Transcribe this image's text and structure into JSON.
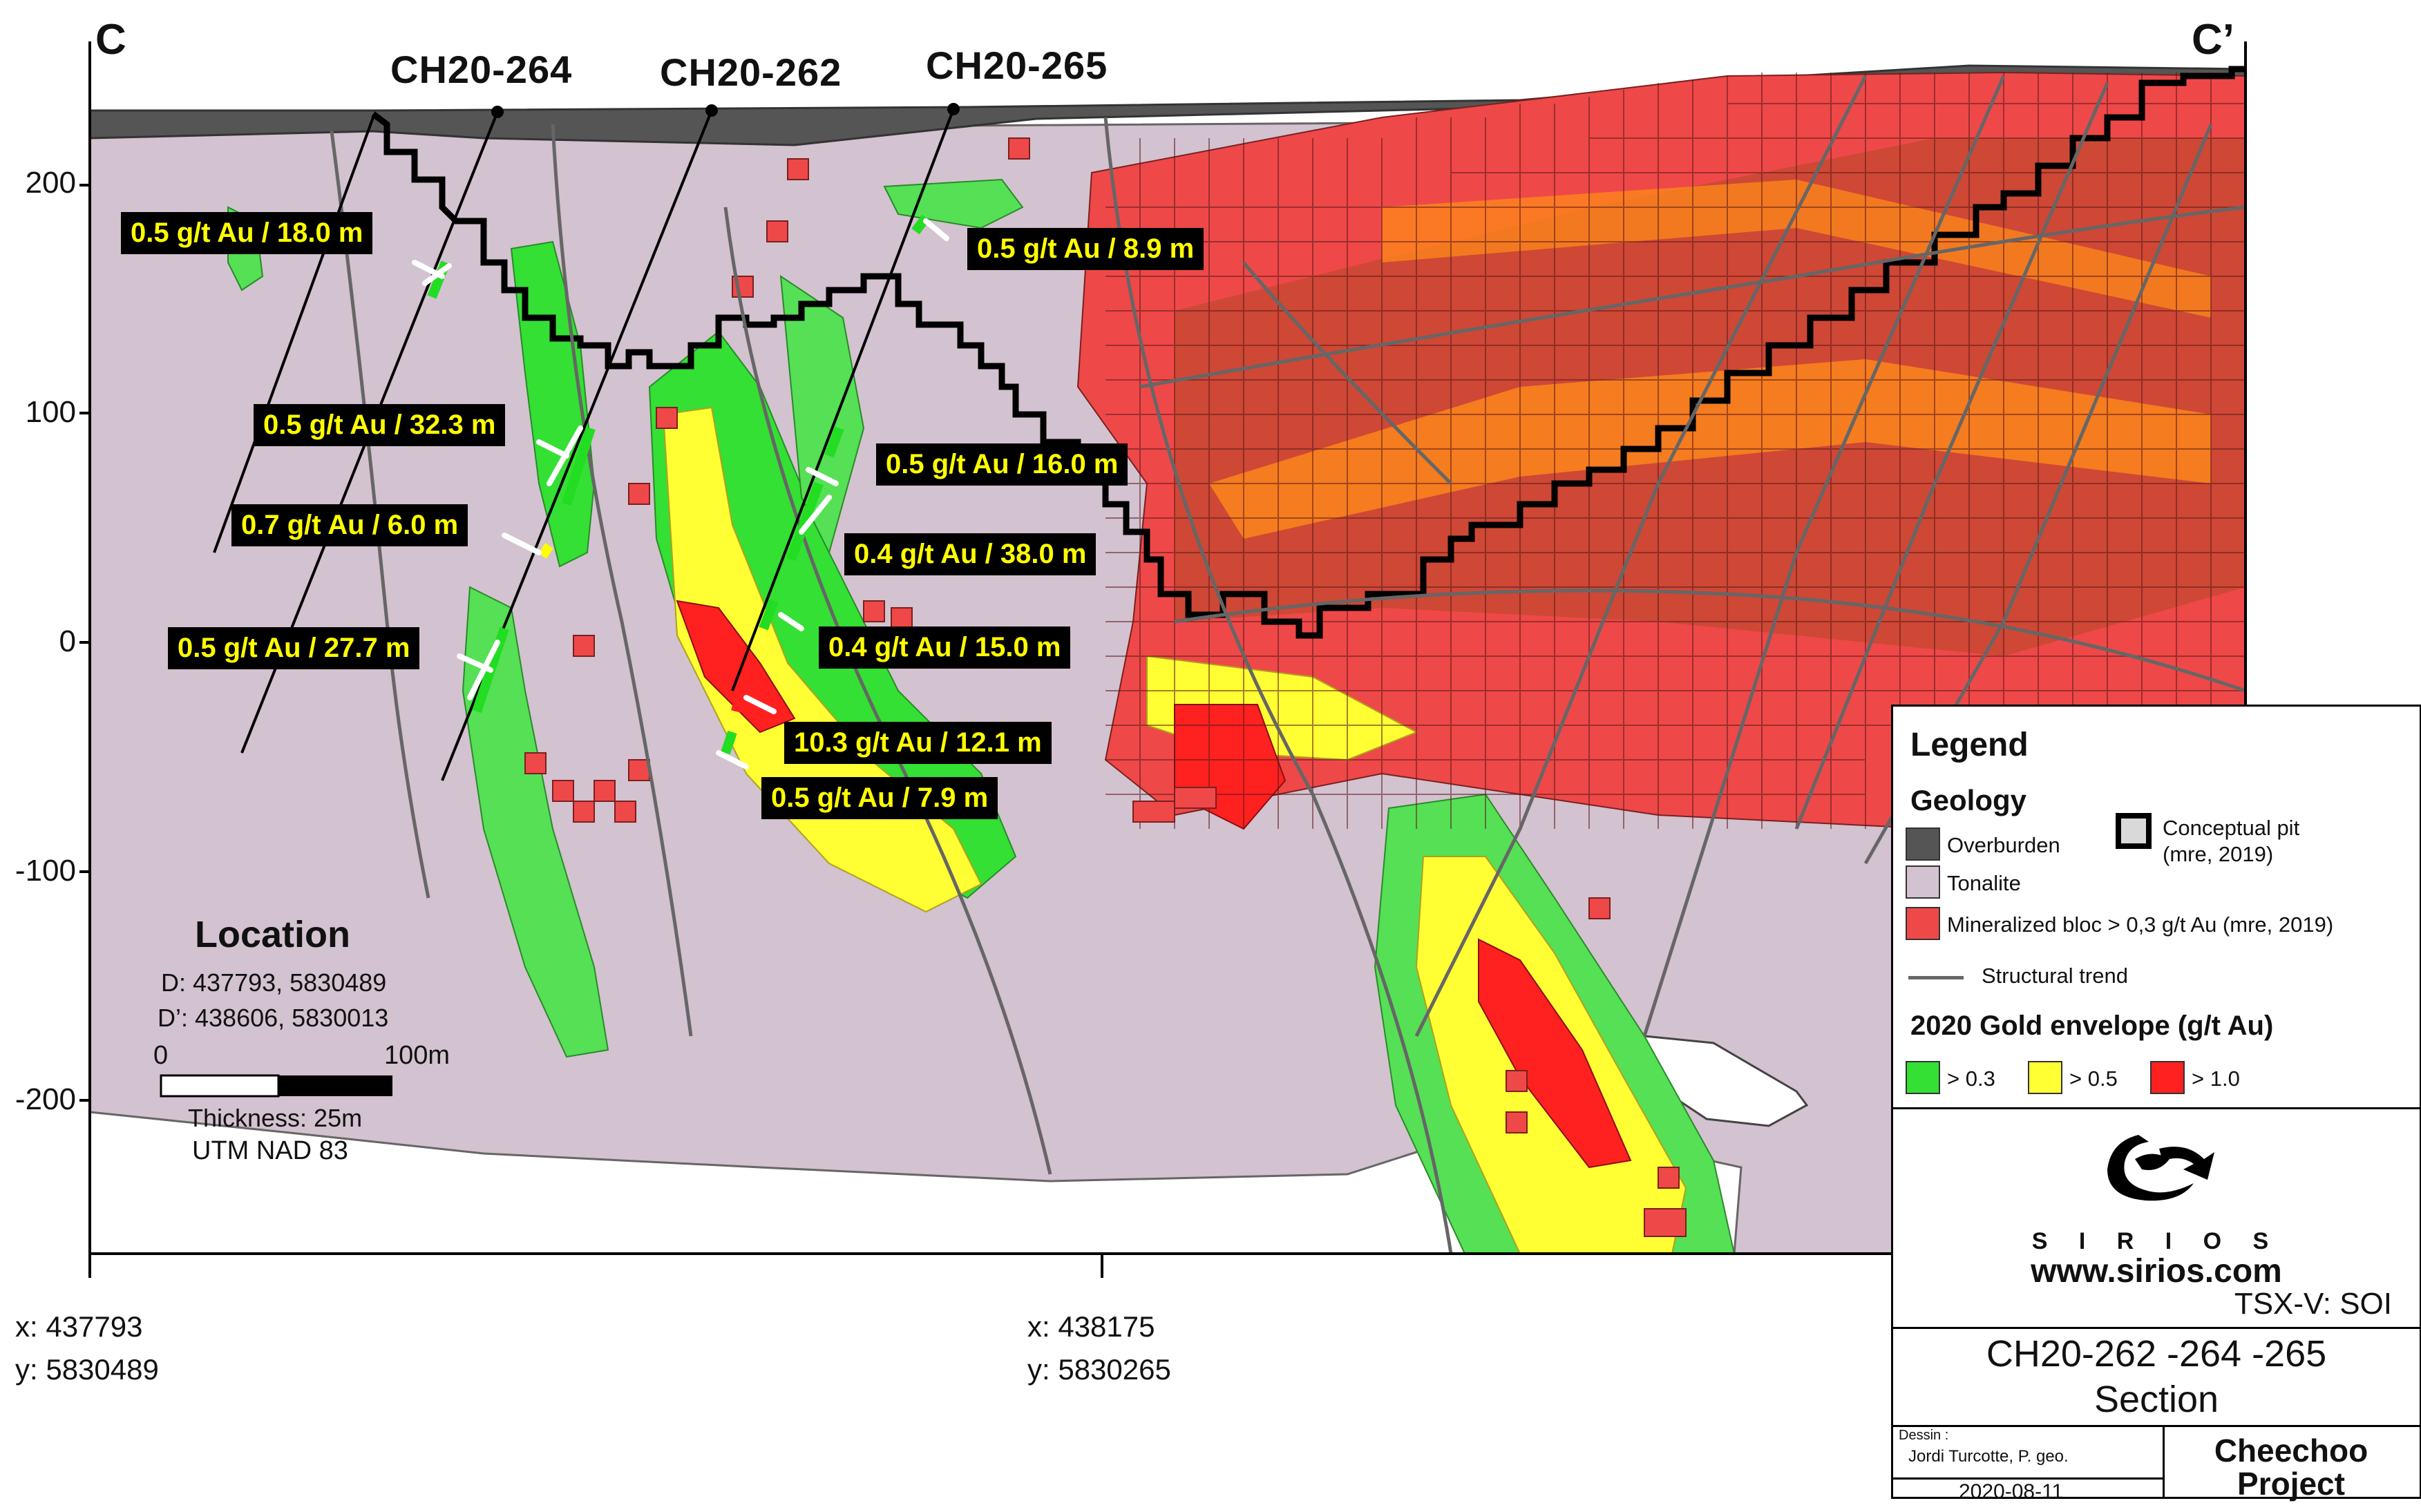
{
  "section": {
    "corner_left": "C",
    "corner_right": "C’",
    "drill_holes": [
      "CH20-264",
      "CH20-262",
      "CH20-265"
    ],
    "y_axis_ticks": [
      "200",
      "100",
      "0",
      "-100",
      "-200"
    ],
    "intervals": [
      "0.5 g/t Au / 18.0 m",
      "0.5 g/t Au / 8.9 m",
      "0.5 g/t Au / 32.3 m",
      "0.5 g/t Au / 16.0 m",
      "0.7 g/t Au / 6.0 m",
      "0.4 g/t Au / 38.0 m",
      "0.5 g/t Au / 27.7 m",
      "0.4 g/t Au / 15.0 m",
      "10.3 g/t Au / 12.1 m",
      "0.5 g/t Au / 7.9 m"
    ],
    "x_coords": [
      {
        "x": "x: 437793",
        "y": "y: 5830489"
      },
      {
        "x": "x: 438175",
        "y": "y: 5830265"
      }
    ]
  },
  "location": {
    "title": "Location",
    "d": "D: 437793, 5830489",
    "d_prime": "D’: 438606, 5830013",
    "scale_start": "0",
    "scale_end": "100m",
    "thickness": "Thickness: 25m",
    "datum": "UTM NAD 83"
  },
  "legend": {
    "title": "Legend",
    "geology_heading": "Geology",
    "overburden": "Overburden",
    "tonalite": "Tonalite",
    "pit_line1": "Conceptual pit",
    "pit_line2": "(mre, 2019)",
    "mineralized": "Mineralized bloc > 0,3 g/t Au (mre, 2019)",
    "structural": "Structural trend",
    "envelope_heading": "2020 Gold envelope (g/t Au)",
    "env_03": "> 0.3",
    "env_05": "> 0.5",
    "env_10": "> 1.0",
    "company": "S I R I O S",
    "website": "www.sirios.com",
    "ticker": "TSX-V: SOI",
    "section_title_1": "CH20-262 -264 -265",
    "section_title_2": "Section",
    "dessin_label": "Dessin :",
    "author": "Jordi Turcotte, P. geo.",
    "date": "2020-08-11",
    "project_1": "Cheechoo",
    "project_2": "Project"
  },
  "colors": {
    "overburden": "#555555",
    "tonalite": "#d3c2cf",
    "mineralized": "#ef4848",
    "env_03": "#33e033",
    "env_05": "#ffff33",
    "env_10": "#ff2020",
    "structural": "#666666"
  }
}
